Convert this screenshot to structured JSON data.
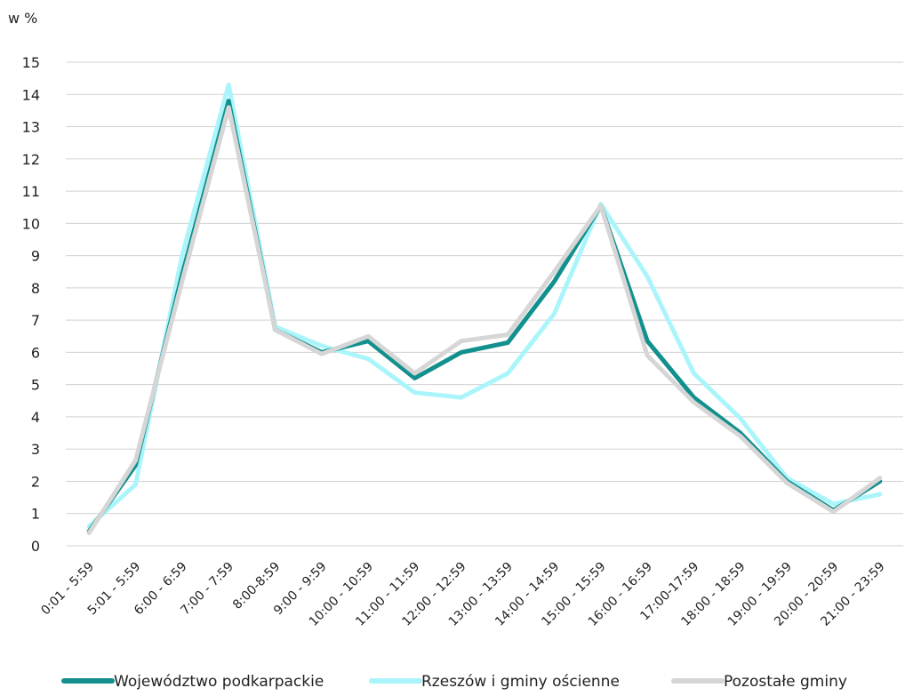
{
  "chart_data": {
    "type": "line",
    "ylabel": "w %",
    "ylim": [
      0,
      15
    ],
    "yticks": [
      "0",
      "1",
      "2",
      "3",
      "4",
      "5",
      "6",
      "7",
      "8",
      "9",
      "10",
      "11",
      "12",
      "13",
      "14",
      "15"
    ],
    "grid": true,
    "legend_position": "bottom",
    "categories": [
      "0:01 - 5:59",
      "5:01 - 5:59",
      "6:00 - 6:59",
      "7:00 - 7:59",
      "8:00-8:59",
      "9:00 - 9:59",
      "10:00 - 10:59",
      "11:00 - 11:59",
      "12:00 - 12:59",
      "13:00 - 13:59",
      "14:00 - 14:59",
      "15:00 - 15:59",
      "16:00 - 16:59",
      "17:00-17:59",
      "18:00 - 18:59",
      "19:00 - 19:59",
      "20:00 - 20:59",
      "21:00 - 23:59"
    ],
    "series": [
      {
        "name": "Województwo podkarpackie",
        "color": "#12908e",
        "values": [
          0.45,
          2.5,
          8.4,
          13.8,
          6.7,
          6.0,
          6.35,
          5.2,
          6.0,
          6.3,
          8.2,
          10.55,
          6.35,
          4.6,
          3.5,
          2.0,
          1.1,
          2.0
        ]
      },
      {
        "name": "Rzeszów i gminy ościenne",
        "color": "#aaf5fb",
        "values": [
          0.6,
          1.9,
          9.0,
          14.3,
          6.8,
          6.2,
          5.8,
          4.75,
          4.6,
          5.35,
          7.2,
          10.6,
          8.35,
          5.35,
          3.95,
          2.1,
          1.3,
          1.6
        ]
      },
      {
        "name": "Pozostałe gminy",
        "color": "#d6d6d6",
        "values": [
          0.4,
          2.65,
          8.2,
          13.6,
          6.7,
          5.95,
          6.5,
          5.35,
          6.35,
          6.55,
          8.5,
          10.55,
          5.9,
          4.45,
          3.4,
          1.95,
          1.05,
          2.1
        ]
      }
    ]
  }
}
